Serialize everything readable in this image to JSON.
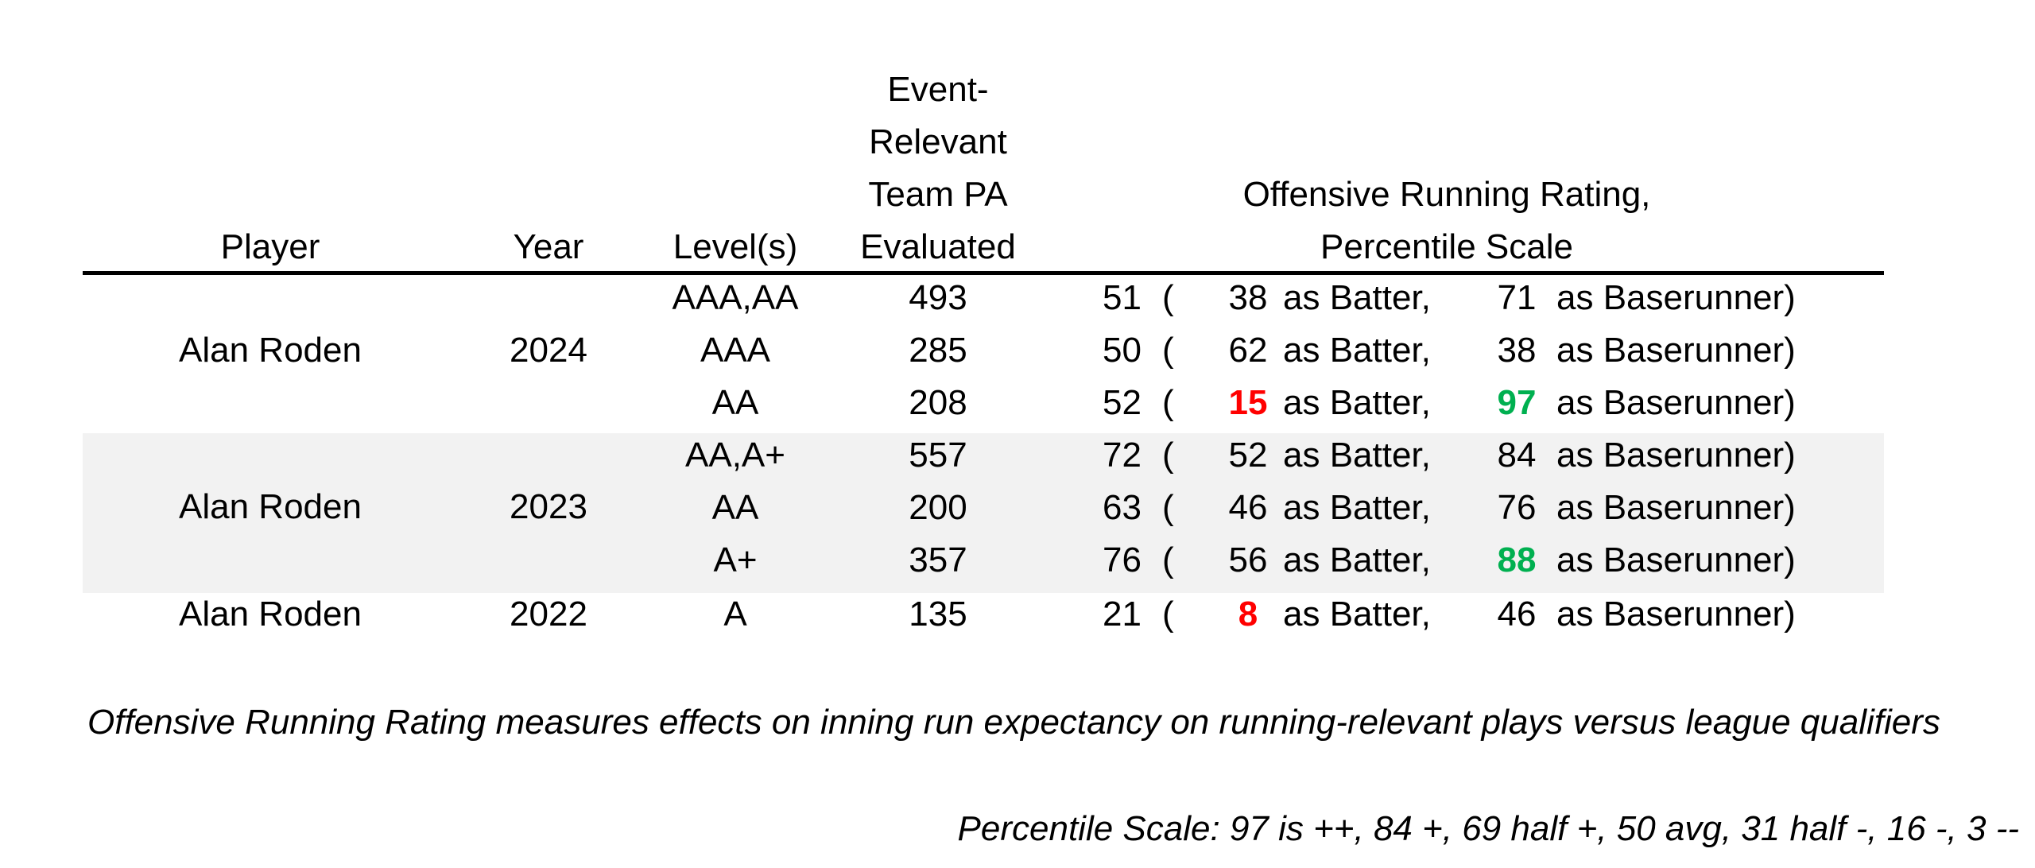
{
  "colors": {
    "low_highlight": "#ff0000",
    "high_highlight": "#00b050",
    "band_shade": "#f2f2f2"
  },
  "headers": {
    "player": "Player",
    "year": "Year",
    "levels": "Level(s)",
    "pa_line1": "Event-",
    "pa_line2": "Relevant",
    "pa_line3": "Team PA",
    "pa_line4": "Evaluated",
    "rating_line1": "Offensive Running Rating,",
    "rating_line2": "Percentile Scale"
  },
  "groups": [
    {
      "player": "Alan Roden",
      "year": "2024"
    },
    {
      "player": "Alan Roden",
      "year": "2023"
    },
    {
      "player": "Alan Roden",
      "year": "2022"
    }
  ],
  "rows": [
    {
      "level": "AAA,AA",
      "pa": "493",
      "overall": "51",
      "paren": "(",
      "batter": "38",
      "batter_label": "as Batter,",
      "runner": "71",
      "runner_label": "as Baserunner)"
    },
    {
      "level": "AAA",
      "pa": "285",
      "overall": "50",
      "paren": "(",
      "batter": "62",
      "batter_label": "as Batter,",
      "runner": "38",
      "runner_label": "as Baserunner)"
    },
    {
      "level": "AA",
      "pa": "208",
      "overall": "52",
      "paren": "(",
      "batter": "15",
      "batter_label": "as Batter,",
      "runner": "97",
      "runner_label": "as Baserunner)"
    },
    {
      "level": "AA,A+",
      "pa": "557",
      "overall": "72",
      "paren": "(",
      "batter": "52",
      "batter_label": "as Batter,",
      "runner": "84",
      "runner_label": "as Baserunner)"
    },
    {
      "level": "AA",
      "pa": "200",
      "overall": "63",
      "paren": "(",
      "batter": "46",
      "batter_label": "as Batter,",
      "runner": "76",
      "runner_label": "as Baserunner)"
    },
    {
      "level": "A+",
      "pa": "357",
      "overall": "76",
      "paren": "(",
      "batter": "56",
      "batter_label": "as Batter,",
      "runner": "88",
      "runner_label": "as Baserunner)"
    },
    {
      "level": "A",
      "pa": "135",
      "overall": "21",
      "paren": "(",
      "batter": "8",
      "batter_label": "as Batter,",
      "runner": "46",
      "runner_label": "as Baserunner)"
    }
  ],
  "notes": {
    "definition": "Offensive Running Rating measures effects on inning run expectancy on running-relevant plays versus league qualifiers",
    "scale": "Percentile Scale: 97 is ++, 84 +, 69 half +, 50 avg, 31 half -, 16 -, 3 --"
  }
}
